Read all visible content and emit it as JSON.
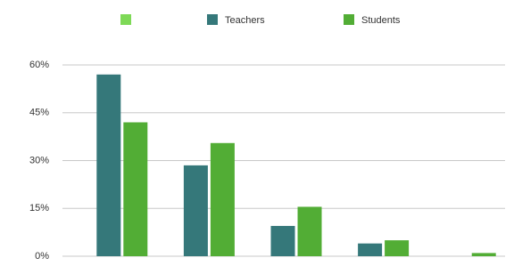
{
  "chart_data": {
    "type": "bar",
    "categories": [
      null,
      null,
      null,
      null,
      null
    ],
    "series": [
      {
        "name": null,
        "color": "#7ed957",
        "values": [
          null,
          null,
          null,
          null,
          null
        ]
      },
      {
        "name": "Teachers",
        "color": "#35787a",
        "values": [
          57,
          28.5,
          9.5,
          4,
          0
        ]
      },
      {
        "name": "Students",
        "color": "#52ad35",
        "values": [
          42,
          35.5,
          15.5,
          5,
          1
        ]
      }
    ],
    "ylim": [
      0,
      60
    ],
    "yticks": [
      {
        "value": 0,
        "label": "0%"
      },
      {
        "value": 15,
        "label": "15%"
      },
      {
        "value": 30,
        "label": "30%"
      },
      {
        "value": 45,
        "label": "45%"
      },
      {
        "value": 60,
        "label": "60%"
      }
    ],
    "grid": true,
    "legend": "top"
  }
}
